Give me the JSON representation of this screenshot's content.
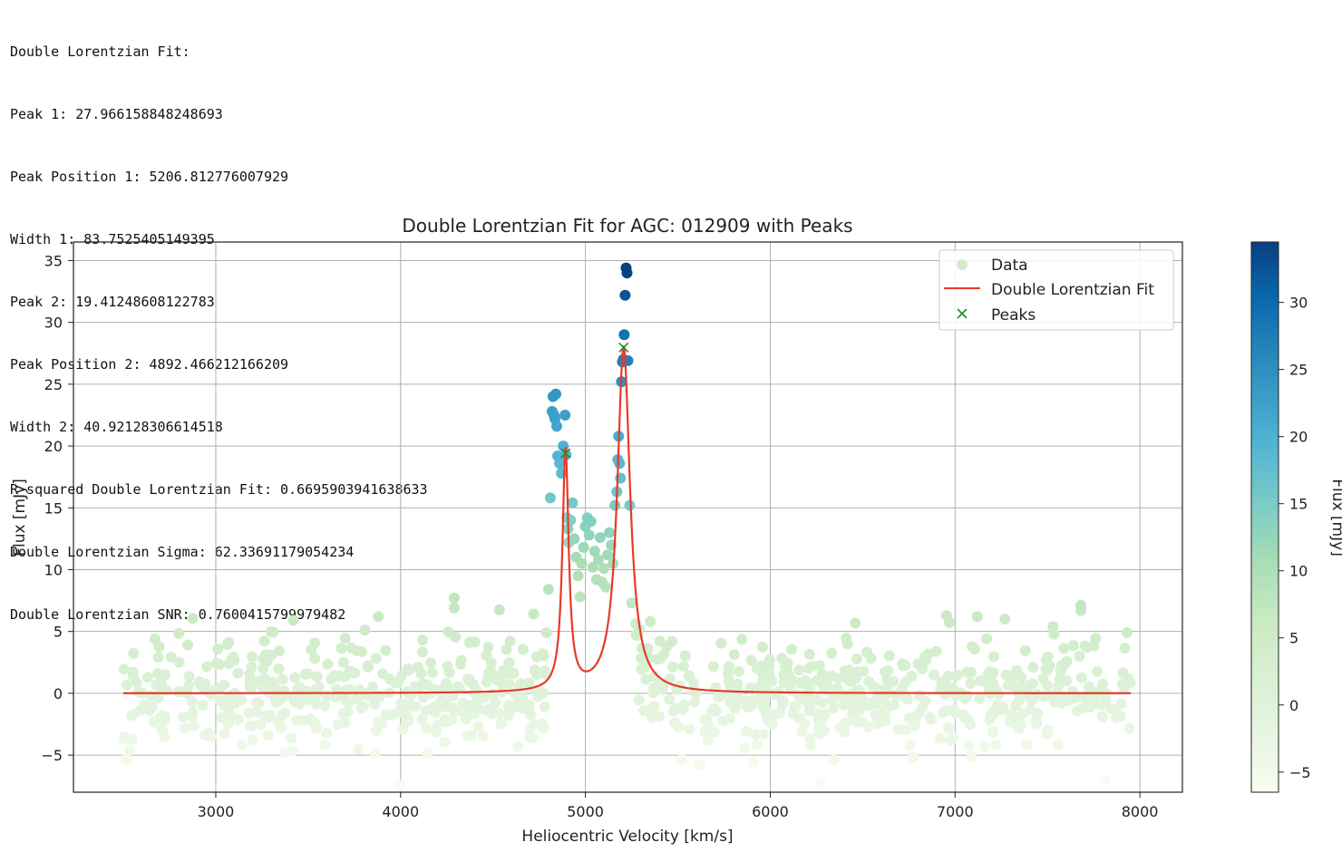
{
  "console_output": [
    "Double Lorentzian Fit:",
    "Peak 1: 27.966158848248693",
    "Peak Position 1: 5206.812776007929",
    "Width 1: 83.7525405149395",
    "Peak 2: 19.41248608122783",
    "Peak Position 2: 4892.466212166209",
    "Width 2: 40.92128306614518",
    "R-squared Double Lorentzian Fit: 0.6695903941638633",
    "Double Lorentzian Sigma: 62.33691179054234",
    "Double Lorentzian SNR: 0.7600415799979482"
  ],
  "chart_data": {
    "type": "scatter",
    "title": "Double Lorentzian Fit for AGC: 012909 with Peaks",
    "xlabel": "Heliocentric Velocity [km/s]",
    "ylabel": "Flux [mJy]",
    "xlim": [
      2230,
      8230
    ],
    "ylim": [
      -8,
      36.5
    ],
    "xticks": [
      3000,
      4000,
      5000,
      6000,
      7000,
      8000
    ],
    "yticks": [
      -5,
      0,
      5,
      10,
      15,
      20,
      25,
      30,
      35
    ],
    "xtick_labels": [
      "3000",
      "4000",
      "5000",
      "6000",
      "7000",
      "8000"
    ],
    "ytick_labels": [
      "−5",
      "0",
      "5",
      "10",
      "15",
      "20",
      "25",
      "30",
      "35"
    ],
    "grid": true,
    "legend": {
      "placement": "top-right",
      "entries": [
        {
          "label": "Data",
          "marker": "circle",
          "color": "#d4ecc9"
        },
        {
          "label": "Double Lorentzian Fit",
          "marker": "line",
          "color": "#e8392a"
        },
        {
          "label": "Peaks",
          "marker": "x",
          "color": "#2a8a2a"
        }
      ]
    },
    "colorbar": {
      "label": "Flux [mJy]",
      "colormap": "GnBu",
      "range": [
        -6.5,
        34.5
      ],
      "ticks": [
        -5,
        0,
        5,
        10,
        15,
        20,
        25,
        30
      ],
      "tick_labels": [
        "−5",
        "0",
        "5",
        "10",
        "15",
        "20",
        "25",
        "30"
      ]
    },
    "data_series": {
      "name": "Data",
      "x_range": [
        2500,
        7950
      ],
      "noise_sigma": 2.2,
      "count": 900,
      "line_region_points": [
        [
          4810,
          15.8
        ],
        [
          4820,
          22.8
        ],
        [
          4825,
          24.0
        ],
        [
          4830,
          22.5
        ],
        [
          4835,
          22.2
        ],
        [
          4840,
          24.2
        ],
        [
          4845,
          21.6
        ],
        [
          4850,
          19.2
        ],
        [
          4860,
          18.6
        ],
        [
          4870,
          17.8
        ],
        [
          4880,
          20.0
        ],
        [
          4890,
          22.5
        ],
        [
          4895,
          19.3
        ],
        [
          4900,
          14.2
        ],
        [
          4905,
          13.3
        ],
        [
          4910,
          12.2
        ],
        [
          4920,
          14.0
        ],
        [
          4930,
          15.4
        ],
        [
          4940,
          12.5
        ],
        [
          4950,
          11.0
        ],
        [
          4960,
          9.5
        ],
        [
          4970,
          7.8
        ],
        [
          4980,
          10.5
        ],
        [
          4990,
          11.8
        ],
        [
          5000,
          13.5
        ],
        [
          5010,
          14.2
        ],
        [
          5020,
          12.8
        ],
        [
          5030,
          13.9
        ],
        [
          5040,
          10.2
        ],
        [
          5050,
          11.5
        ],
        [
          5060,
          9.2
        ],
        [
          5070,
          10.8
        ],
        [
          5080,
          12.6
        ],
        [
          5090,
          9.0
        ],
        [
          5100,
          10.1
        ],
        [
          5110,
          8.6
        ],
        [
          5120,
          11.2
        ],
        [
          5130,
          13.0
        ],
        [
          5140,
          12.0
        ],
        [
          5150,
          10.5
        ],
        [
          5160,
          15.2
        ],
        [
          5170,
          16.3
        ],
        [
          5175,
          18.9
        ],
        [
          5180,
          20.8
        ],
        [
          5185,
          18.6
        ],
        [
          5190,
          17.4
        ],
        [
          5195,
          25.2
        ],
        [
          5200,
          26.8
        ],
        [
          5205,
          27.0
        ],
        [
          5210,
          29.0
        ],
        [
          5215,
          32.2
        ],
        [
          5220,
          34.4
        ],
        [
          5225,
          34.0
        ],
        [
          5230,
          26.9
        ],
        [
          5240,
          15.2
        ],
        [
          5250,
          7.3
        ],
        [
          4800,
          8.4
        ],
        [
          4790,
          4.9
        ],
        [
          4780,
          1.8
        ],
        [
          4770,
          3.2
        ],
        [
          3880,
          6.2
        ],
        [
          4290,
          7.7
        ],
        [
          4290,
          6.9
        ],
        [
          7120,
          6.2
        ],
        [
          7270,
          6.0
        ],
        [
          7530,
          5.4
        ],
        [
          7680,
          7.1
        ],
        [
          7680,
          6.7
        ],
        [
          3420,
          5.9
        ],
        [
          3300,
          5.0
        ]
      ]
    },
    "fit_series": {
      "name": "Double Lorentzian Fit",
      "x_range": [
        2500,
        7950
      ],
      "peaks": [
        {
          "amplitude": 27.966158848248693,
          "center": 5206.812776007929,
          "width": 83.7525405149395
        },
        {
          "amplitude": 19.41248608122783,
          "center": 4892.466212166209,
          "width": 40.92128306614518
        }
      ]
    },
    "peaks_series": {
      "name": "Peaks",
      "x": [
        5206.81,
        4892.47
      ],
      "y": [
        27.97,
        19.41
      ]
    }
  }
}
